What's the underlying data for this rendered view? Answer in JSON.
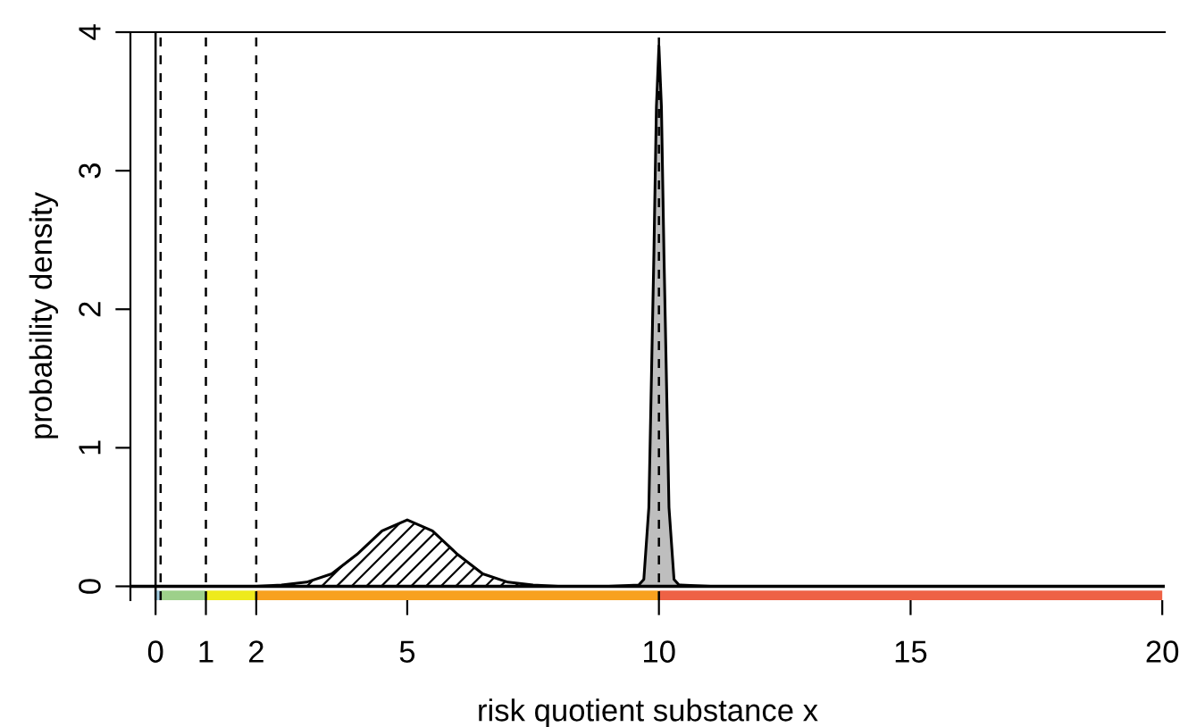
{
  "chart_data": {
    "type": "area",
    "xlabel": "risk quotient substance x",
    "ylabel": "probability density",
    "xlim": [
      -0.5,
      20.05
    ],
    "ylim": [
      -0.1,
      4
    ],
    "xticks": [
      0,
      1,
      2,
      5,
      10,
      15,
      20
    ],
    "yticks": [
      0,
      1,
      2,
      3,
      4
    ],
    "grid": false,
    "legend": false,
    "series": [
      {
        "color": "#ffffff",
        "x": [
          1,
          2,
          2.5,
          3,
          3.5,
          4,
          4.5,
          5,
          5.5,
          6,
          6.5,
          7,
          7.5,
          8,
          9
        ],
        "values": [
          0,
          0,
          0.01,
          0.03,
          0.09,
          0.23,
          0.4,
          0.48,
          0.4,
          0.23,
          0.09,
          0.03,
          0.01,
          0,
          0
        ]
      },
      {
        "color": "#bebebe",
        "x": [
          9,
          9.6,
          9.7,
          9.8,
          9.9,
          9.95,
          10,
          10.05,
          10.1,
          10.2,
          10.3,
          10.4,
          11
        ],
        "values": [
          0,
          0.01,
          0.05,
          0.57,
          2.4,
          3.46,
          3.9,
          3.46,
          2.4,
          0.57,
          0.05,
          0.01,
          0
        ]
      }
    ],
    "ref_lines": [
      {
        "axis": "x",
        "value": 0,
        "line_style": "solid"
      },
      {
        "axis": "x",
        "value": 0.1,
        "line_style": "dashed"
      },
      {
        "axis": "x",
        "value": 1,
        "line_style": "dashed"
      },
      {
        "axis": "x",
        "value": 2,
        "line_style": "dashed"
      },
      {
        "axis": "x",
        "value": 10,
        "line_style": "dashed"
      }
    ]
  }
}
